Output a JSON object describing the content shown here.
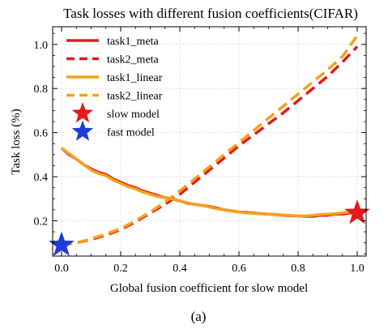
{
  "chart_data": {
    "type": "line",
    "title": "Task losses with different fusion coefficients(CIFAR)",
    "xlabel": "Global fusion coefficient for slow model",
    "ylabel": "Task loss (%)",
    "caption": "(a)",
    "xlim": [
      -0.03,
      1.03
    ],
    "ylim": [
      0.04,
      1.08
    ],
    "grid": true,
    "legend_position": "top-left",
    "x_ticks": [
      0.0,
      0.2,
      0.4,
      0.6,
      0.8,
      1.0
    ],
    "x_tick_labels": [
      "0.0",
      "0.2",
      "0.4",
      "0.6",
      "0.8",
      "1.0"
    ],
    "y_ticks": [
      0.2,
      0.4,
      0.6,
      0.8,
      1.0
    ],
    "y_tick_labels": [
      "0.2",
      "0.4",
      "0.6",
      "0.8",
      "1.0"
    ],
    "series": [
      {
        "name": "task1_meta",
        "label": "task1_meta",
        "color": "#e31a1c",
        "dash": "solid",
        "x": [
          0.0,
          0.025,
          0.05,
          0.075,
          0.1,
          0.125,
          0.15,
          0.175,
          0.2,
          0.225,
          0.25,
          0.275,
          0.3,
          0.325,
          0.35,
          0.375,
          0.4,
          0.425,
          0.45,
          0.475,
          0.5,
          0.525,
          0.55,
          0.575,
          0.6,
          0.625,
          0.65,
          0.675,
          0.7,
          0.725,
          0.75,
          0.775,
          0.8,
          0.825,
          0.85,
          0.875,
          0.9,
          0.925,
          0.95,
          0.975,
          1.0
        ],
        "values": [
          0.53,
          0.5,
          0.48,
          0.455,
          0.435,
          0.42,
          0.41,
          0.39,
          0.375,
          0.36,
          0.35,
          0.335,
          0.325,
          0.315,
          0.305,
          0.3,
          0.29,
          0.28,
          0.275,
          0.27,
          0.265,
          0.258,
          0.25,
          0.245,
          0.24,
          0.238,
          0.235,
          0.232,
          0.23,
          0.228,
          0.225,
          0.223,
          0.222,
          0.22,
          0.22,
          0.225,
          0.225,
          0.23,
          0.23,
          0.235,
          0.235
        ]
      },
      {
        "name": "task2_meta",
        "label": "task2_meta",
        "color": "#e31a1c",
        "dash": "dashed",
        "x": [
          0.0,
          0.05,
          0.1,
          0.15,
          0.2,
          0.25,
          0.3,
          0.35,
          0.4,
          0.45,
          0.5,
          0.55,
          0.6,
          0.65,
          0.7,
          0.75,
          0.8,
          0.85,
          0.9,
          0.95,
          1.0
        ],
        "values": [
          0.09,
          0.1,
          0.115,
          0.135,
          0.16,
          0.195,
          0.235,
          0.275,
          0.32,
          0.375,
          0.43,
          0.485,
          0.54,
          0.59,
          0.64,
          0.69,
          0.745,
          0.8,
          0.855,
          0.92,
          0.99
        ]
      },
      {
        "name": "task1_linear",
        "label": "task1_linear",
        "color": "#f5a01c",
        "dash": "solid",
        "x": [
          0.0,
          0.025,
          0.05,
          0.075,
          0.1,
          0.125,
          0.15,
          0.175,
          0.2,
          0.225,
          0.25,
          0.275,
          0.3,
          0.325,
          0.35,
          0.375,
          0.4,
          0.425,
          0.45,
          0.475,
          0.5,
          0.525,
          0.55,
          0.575,
          0.6,
          0.625,
          0.65,
          0.675,
          0.7,
          0.725,
          0.75,
          0.775,
          0.8,
          0.825,
          0.85,
          0.875,
          0.9,
          0.925,
          0.95,
          0.975,
          1.0
        ],
        "values": [
          0.53,
          0.505,
          0.48,
          0.455,
          0.43,
          0.415,
          0.405,
          0.385,
          0.37,
          0.355,
          0.345,
          0.33,
          0.32,
          0.31,
          0.305,
          0.298,
          0.29,
          0.282,
          0.275,
          0.27,
          0.262,
          0.255,
          0.25,
          0.244,
          0.24,
          0.236,
          0.234,
          0.232,
          0.23,
          0.228,
          0.226,
          0.224,
          0.222,
          0.222,
          0.225,
          0.228,
          0.23,
          0.232,
          0.236,
          0.24,
          0.24
        ]
      },
      {
        "name": "task2_linear",
        "label": "task2_linear",
        "color": "#f5a01c",
        "dash": "dashed",
        "x": [
          0.0,
          0.05,
          0.1,
          0.15,
          0.2,
          0.25,
          0.3,
          0.35,
          0.4,
          0.45,
          0.5,
          0.55,
          0.6,
          0.65,
          0.7,
          0.75,
          0.8,
          0.85,
          0.9,
          0.95,
          1.0
        ],
        "values": [
          0.09,
          0.1,
          0.118,
          0.14,
          0.165,
          0.2,
          0.24,
          0.285,
          0.335,
          0.39,
          0.445,
          0.5,
          0.555,
          0.61,
          0.665,
          0.72,
          0.775,
          0.83,
          0.885,
          0.945,
          1.04
        ]
      }
    ],
    "markers": [
      {
        "name": "slow model",
        "label": "slow model",
        "color": "#e31a1c",
        "shape": "star",
        "x": 1.0,
        "y": 0.235
      },
      {
        "name": "fast model",
        "label": "fast model",
        "color": "#1f3bd6",
        "shape": "star",
        "x": 0.0,
        "y": 0.09
      }
    ]
  }
}
